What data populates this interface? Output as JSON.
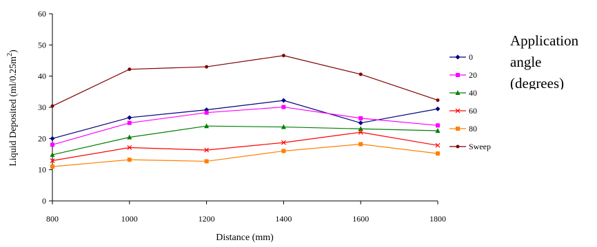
{
  "chart_data": {
    "type": "line",
    "title": "",
    "xlabel": "Distance (mm)",
    "ylabel": "Liquid Deposited (ml/0.25m",
    "ylabel_superscript": "2",
    "ylabel_suffix": ")",
    "x": [
      800,
      1000,
      1200,
      1400,
      1600,
      1800
    ],
    "xlim": [
      800,
      1800
    ],
    "ylim": [
      0,
      60
    ],
    "x_ticks": [
      "800",
      "1000",
      "1200",
      "1400",
      "1600",
      "1800"
    ],
    "y_ticks": [
      "0",
      "10",
      "20",
      "30",
      "40",
      "50",
      "60"
    ],
    "grid": false,
    "legend_title_lines": [
      "Application",
      "angle",
      "(degrees)"
    ],
    "legend_placement": "right",
    "series": [
      {
        "name": "0",
        "color": "#00007f",
        "marker": "diamond",
        "values": [
          20,
          26.7,
          29.2,
          32.2,
          25,
          29.5
        ]
      },
      {
        "name": "20",
        "color": "#ff00ff",
        "marker": "square",
        "values": [
          18,
          25,
          28.3,
          30.1,
          26.5,
          24.2
        ]
      },
      {
        "name": "40",
        "color": "#007f00",
        "marker": "triangle",
        "values": [
          14.8,
          20.4,
          24,
          23.7,
          23.1,
          22.5
        ]
      },
      {
        "name": "60",
        "color": "#ff0000",
        "marker": "x",
        "values": [
          12.9,
          17.1,
          16.3,
          18.7,
          22,
          17.8
        ]
      },
      {
        "name": "80",
        "color": "#ff7f00",
        "marker": "square",
        "values": [
          11,
          13.2,
          12.7,
          16,
          18.2,
          15.2
        ]
      },
      {
        "name": "Sweep",
        "color": "#7f0000",
        "marker": "circle",
        "values": [
          30.4,
          42.2,
          43,
          46.6,
          40.6,
          32.3
        ]
      }
    ]
  }
}
